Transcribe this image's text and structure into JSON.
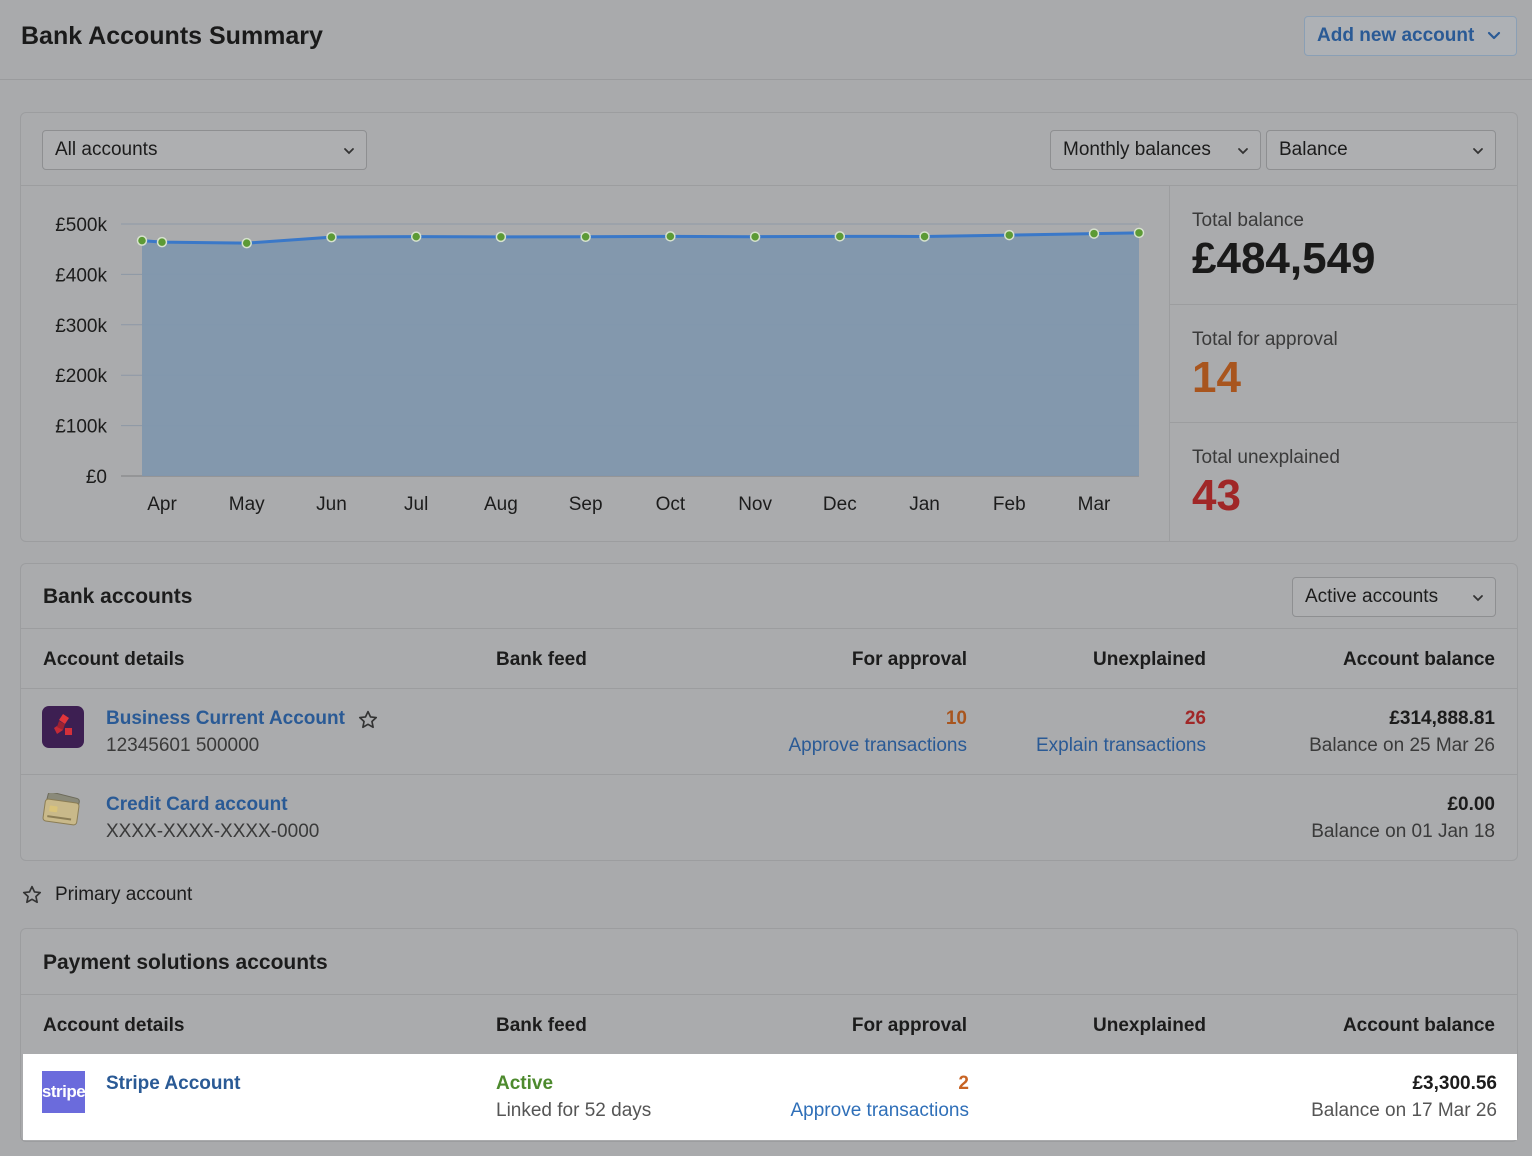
{
  "header": {
    "title": "Bank Accounts Summary",
    "add_button": "Add new account"
  },
  "filters": {
    "accounts_select": "All accounts",
    "period_select": "Monthly balances",
    "metric_select": "Balance"
  },
  "chart_data": {
    "type": "area",
    "categories": [
      "Apr",
      "May",
      "Jun",
      "Jul",
      "Aug",
      "Sep",
      "Oct",
      "Nov",
      "Dec",
      "Jan",
      "Feb",
      "Mar"
    ],
    "x": [
      -0.25,
      0,
      1,
      2,
      3,
      4,
      5,
      6,
      7,
      8,
      9,
      10,
      11,
      11.8
    ],
    "values": [
      467000,
      464000,
      462000,
      474000,
      475000,
      474500,
      474700,
      475500,
      474800,
      475500,
      475300,
      478000,
      481000,
      482500
    ],
    "ylim": [
      0,
      500000
    ],
    "yticks": [
      "£0",
      "£100k",
      "£200k",
      "£300k",
      "£400k",
      "£500k"
    ],
    "ytick_values": [
      0,
      100000,
      200000,
      300000,
      400000,
      500000
    ],
    "grid": true,
    "title": "",
    "xlabel": "",
    "ylabel": "",
    "colors": {
      "line": "#3a78c8",
      "fill": "#8197ad",
      "point": "#5c9a35"
    }
  },
  "stats": {
    "total_balance_label": "Total balance",
    "total_balance": "£484,549",
    "total_approval_label": "Total for approval",
    "total_approval": "14",
    "total_unexplained_label": "Total unexplained",
    "total_unexplained": "43"
  },
  "bank_accounts": {
    "title": "Bank accounts",
    "status_select": "Active accounts",
    "columns": [
      "Account details",
      "Bank feed",
      "For approval",
      "Unexplained",
      "Account balance"
    ],
    "rows": [
      {
        "name": "Business Current Account",
        "number": "12345601 500000",
        "icon": "natwest-logo-icon",
        "approval_count": "10",
        "approval_link": "Approve transactions",
        "unexplained_count": "26",
        "unexplained_link": "Explain transactions",
        "balance": "£314,888.81",
        "balance_date": "Balance on 25 Mar 26"
      },
      {
        "name": "Credit Card account",
        "number": "XXXX-XXXX-XXXX-0000",
        "icon": "credit-card-icon",
        "balance": "£0.00",
        "balance_date": "Balance on 01 Jan 18"
      }
    ]
  },
  "legend": {
    "primary": "Primary account"
  },
  "payment_accounts": {
    "title": "Payment solutions accounts",
    "columns": [
      "Account details",
      "Bank feed",
      "For approval",
      "Unexplained",
      "Account balance"
    ],
    "rows": [
      {
        "logo_text": "stripe",
        "name": "Stripe Account",
        "feed_status": "Active",
        "feed_detail": "Linked for 52 days",
        "approval_count": "2",
        "approval_link": "Approve transactions",
        "balance": "£3,300.56",
        "balance_date": "Balance on 17 Mar 26"
      }
    ]
  }
}
